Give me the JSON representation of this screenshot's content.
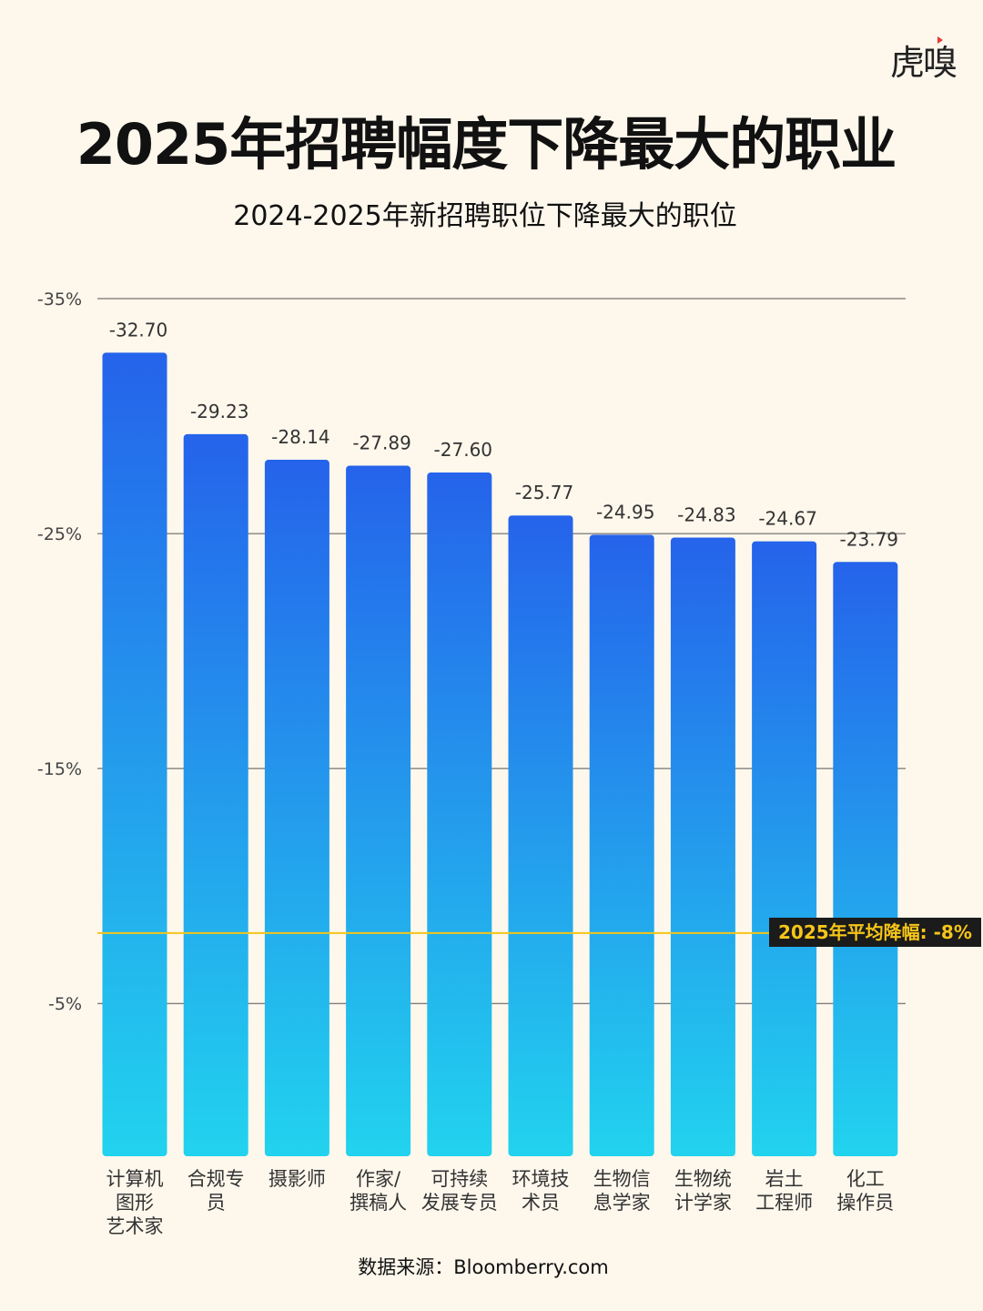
{
  "logo": "虎嗅",
  "title": "2025年招聘幅度下降最大的职业",
  "subtitle": "2024-2025年新招聘职位下降最大的职位",
  "source": "数据来源：Bloomberry.com",
  "chart_data": {
    "type": "bar",
    "categories": [
      "计算机\n图形\n艺术家",
      "合规专\n员",
      "摄影师",
      "作家/\n撰稿人",
      "可持续\n发展专员",
      "环境技\n术员",
      "生物信\n息学家",
      "生物统\n计学家",
      "岩土\n工程师",
      "化工\n操作员"
    ],
    "values": [
      -32.7,
      -29.23,
      -28.14,
      -27.89,
      -27.6,
      -25.77,
      -24.95,
      -24.83,
      -24.67,
      -23.79
    ],
    "value_labels": [
      "-32.70",
      "-29.23",
      "-28.14",
      "-27.89",
      "-27.60",
      "-25.77",
      "-24.95",
      "-24.83",
      "-24.67",
      "-23.79"
    ],
    "yticks": [
      -35,
      -25,
      -15,
      -5
    ],
    "ytick_labels": [
      "-35%",
      "-25%",
      "-15%",
      "-5%"
    ],
    "ylim": [
      -35,
      1.5
    ],
    "y_inverted": true,
    "grid": true,
    "reference_line": {
      "value": -8,
      "label": "2025年平均降幅: -8%",
      "color": "#f5c518"
    },
    "colors": {
      "bar_top": "#2563eb",
      "bar_bottom": "#22d3ee"
    }
  }
}
